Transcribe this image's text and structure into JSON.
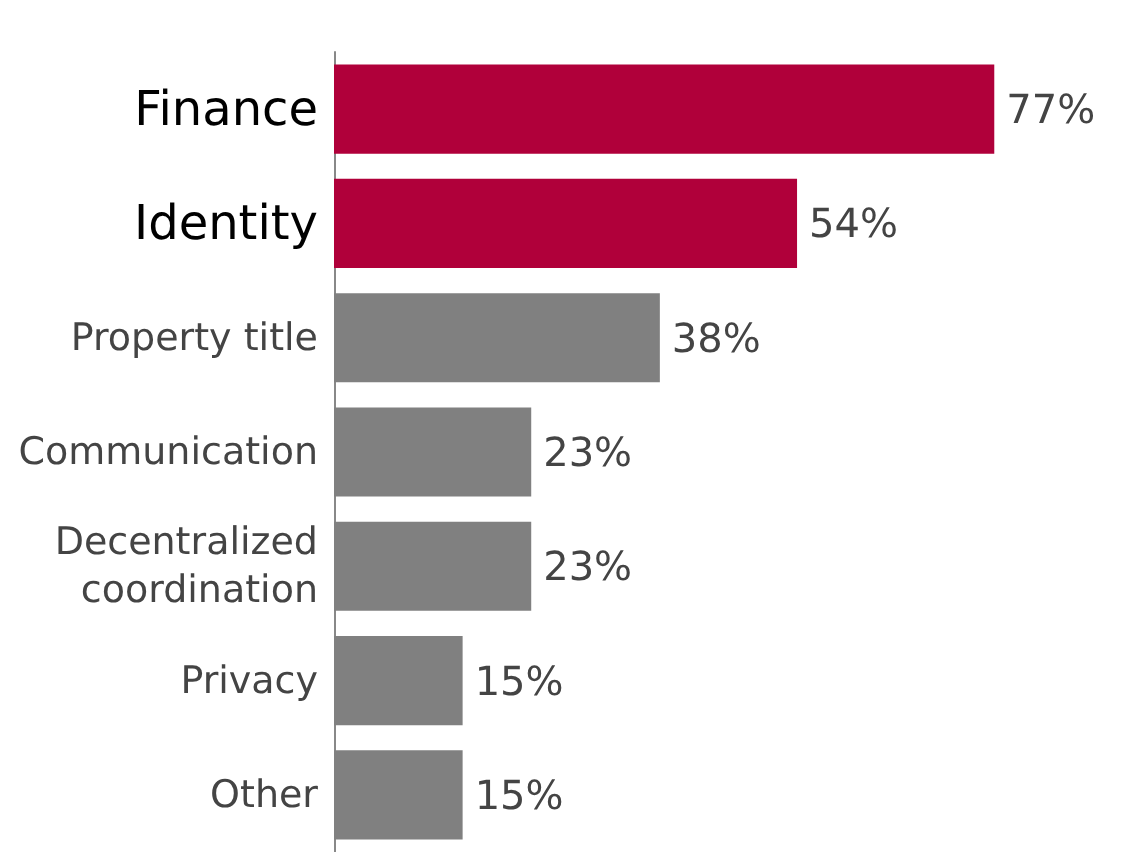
{
  "chart_data": {
    "type": "bar",
    "orientation": "horizontal",
    "categories": [
      "Finance",
      "Identity",
      "Property title",
      "Communication",
      "Decentralized\ncoordination",
      "Privacy",
      "Other"
    ],
    "values": [
      77,
      54,
      38,
      23,
      23,
      15,
      15
    ],
    "colors": [
      "#b0003a",
      "#b0003a",
      "#808080",
      "#808080",
      "#808080",
      "#808080",
      "#808080"
    ],
    "value_labels": [
      "77%",
      "54%",
      "38%",
      "23%",
      "23%",
      "15%",
      "15%"
    ]
  }
}
